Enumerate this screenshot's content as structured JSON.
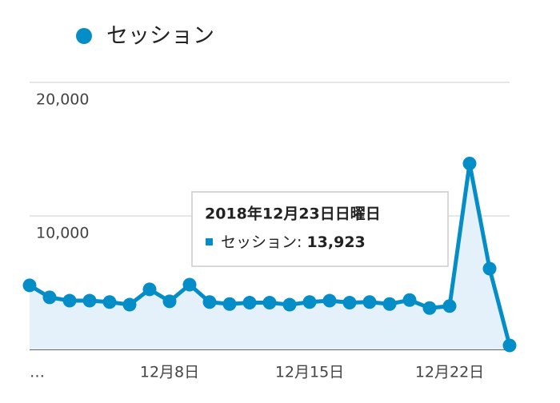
{
  "chart_data": {
    "type": "area",
    "categories": [
      "…",
      null,
      null,
      null,
      null,
      null,
      null,
      "12月8日",
      null,
      null,
      null,
      null,
      null,
      null,
      "12月15日",
      null,
      null,
      null,
      null,
      null,
      null,
      "12月22日",
      null,
      null,
      null
    ],
    "series": [
      {
        "name": "セッション",
        "color": "#058dc7",
        "values": [
          4800,
          3900,
          3650,
          3650,
          3550,
          3350,
          4500,
          3600,
          4850,
          3550,
          3400,
          3500,
          3500,
          3350,
          3550,
          3650,
          3500,
          3550,
          3400,
          3700,
          3100,
          3250,
          13923,
          6050,
          300
        ]
      }
    ],
    "ylim": [
      0,
      20000
    ],
    "yticks": [
      {
        "value": 10000,
        "label": "10,000"
      },
      {
        "value": 20000,
        "label": "20,000"
      }
    ],
    "grid": true,
    "tooltip": {
      "title": "2018年12月23日日曜日",
      "label": "セッション:",
      "value": 13923,
      "value_label": "13,923"
    }
  }
}
